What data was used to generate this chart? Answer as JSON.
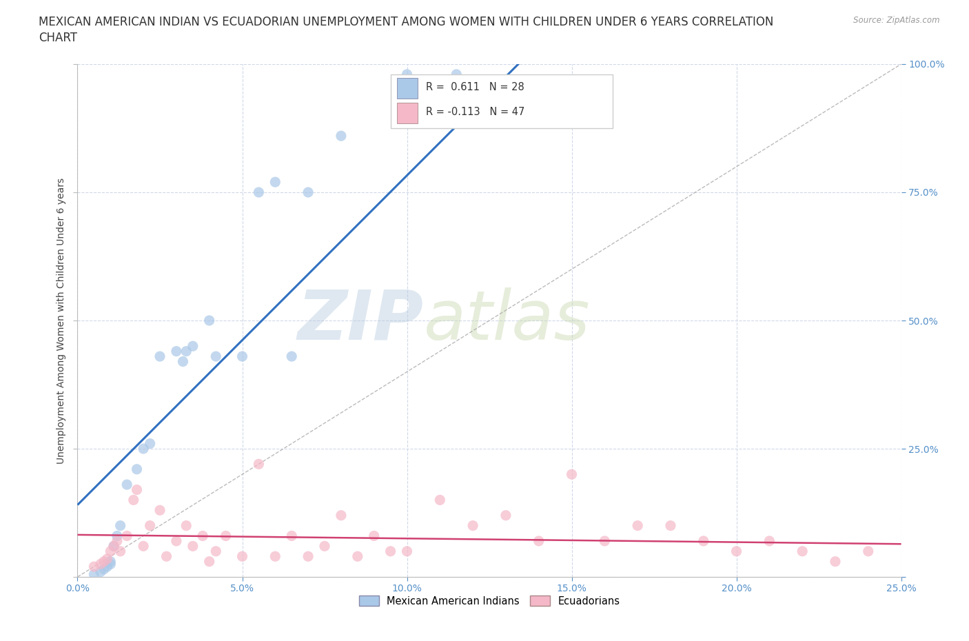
{
  "title_line1": "MEXICAN AMERICAN INDIAN VS ECUADORIAN UNEMPLOYMENT AMONG WOMEN WITH CHILDREN UNDER 6 YEARS CORRELATION",
  "title_line2": "CHART",
  "source": "Source: ZipAtlas.com",
  "ylabel": "Unemployment Among Women with Children Under 6 years",
  "xlim": [
    0.0,
    0.25
  ],
  "ylim": [
    0.0,
    1.0
  ],
  "xticks": [
    0.0,
    0.05,
    0.1,
    0.15,
    0.2,
    0.25
  ],
  "yticks": [
    0.0,
    0.25,
    0.5,
    0.75,
    1.0
  ],
  "watermark_zip": "ZIP",
  "watermark_atlas": "atlas",
  "blue_R": 0.611,
  "blue_N": 28,
  "pink_R": -0.113,
  "pink_N": 47,
  "blue_color": "#aac8e8",
  "pink_color": "#f4b8c8",
  "blue_line_color": "#3070c0",
  "pink_line_color": "#d04070",
  "legend_blue_label": "Mexican American Indians",
  "legend_pink_label": "Ecuadorians",
  "blue_x": [
    0.005,
    0.007,
    0.008,
    0.009,
    0.01,
    0.01,
    0.011,
    0.012,
    0.013,
    0.015,
    0.018,
    0.02,
    0.022,
    0.025,
    0.03,
    0.032,
    0.033,
    0.035,
    0.04,
    0.042,
    0.05,
    0.055,
    0.06,
    0.065,
    0.07,
    0.08,
    0.1,
    0.115
  ],
  "blue_y": [
    0.005,
    0.01,
    0.015,
    0.02,
    0.025,
    0.03,
    0.06,
    0.08,
    0.1,
    0.18,
    0.21,
    0.25,
    0.26,
    0.43,
    0.44,
    0.42,
    0.44,
    0.45,
    0.5,
    0.43,
    0.43,
    0.75,
    0.77,
    0.43,
    0.75,
    0.86,
    0.98,
    0.98
  ],
  "pink_x": [
    0.005,
    0.007,
    0.008,
    0.009,
    0.01,
    0.011,
    0.012,
    0.013,
    0.015,
    0.017,
    0.018,
    0.02,
    0.022,
    0.025,
    0.027,
    0.03,
    0.033,
    0.035,
    0.038,
    0.04,
    0.042,
    0.045,
    0.05,
    0.055,
    0.06,
    0.065,
    0.07,
    0.075,
    0.08,
    0.085,
    0.09,
    0.095,
    0.1,
    0.11,
    0.12,
    0.13,
    0.14,
    0.15,
    0.16,
    0.17,
    0.18,
    0.19,
    0.2,
    0.21,
    0.22,
    0.23,
    0.24
  ],
  "pink_y": [
    0.02,
    0.025,
    0.03,
    0.035,
    0.05,
    0.06,
    0.07,
    0.05,
    0.08,
    0.15,
    0.17,
    0.06,
    0.1,
    0.13,
    0.04,
    0.07,
    0.1,
    0.06,
    0.08,
    0.03,
    0.05,
    0.08,
    0.04,
    0.22,
    0.04,
    0.08,
    0.04,
    0.06,
    0.12,
    0.04,
    0.08,
    0.05,
    0.05,
    0.15,
    0.1,
    0.12,
    0.07,
    0.2,
    0.07,
    0.1,
    0.1,
    0.07,
    0.05,
    0.07,
    0.05,
    0.03,
    0.05
  ],
  "background_color": "#ffffff",
  "grid_color": "#d0d8e8",
  "tick_label_color": "#5590c8",
  "title_fontsize": 12,
  "axis_label_fontsize": 10,
  "tick_fontsize": 10
}
